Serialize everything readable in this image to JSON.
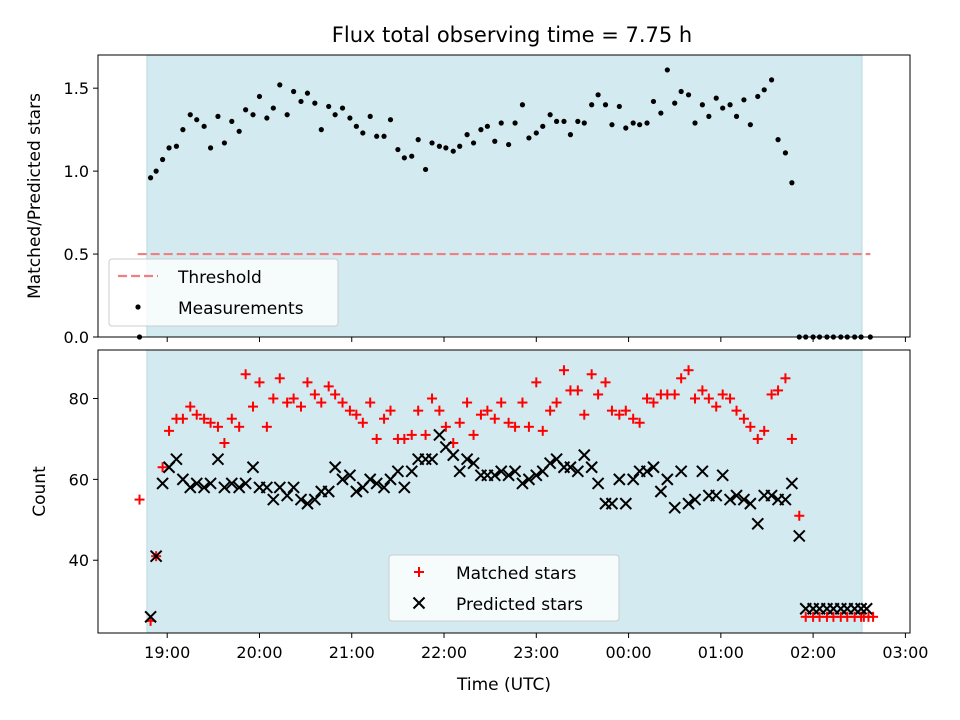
{
  "chart_data": [
    {
      "type": "scatter",
      "title": "Flux total observing time = 7.75 h",
      "ylabel": "Matched/Predicted stars",
      "xlabel": "",
      "x_unit": "hours UTC since 18:00 (values >24 are next day)",
      "xlim": [
        18.25,
        27.05
      ],
      "ylim": [
        0,
        1.7
      ],
      "yticks": [
        0.0,
        0.5,
        1.0,
        1.5
      ],
      "ytick_labels": [
        "0.0",
        "0.5",
        "1.0",
        "1.5"
      ],
      "shaded_span": {
        "x0": 18.78,
        "x1": 26.53,
        "color": "#d3eaf0"
      },
      "threshold": {
        "name": "Threshold",
        "value": 0.5,
        "x0": 18.68,
        "x1": 26.62,
        "color": "#f08080"
      },
      "legend": {
        "location": "lower-left",
        "entries": [
          "Threshold",
          "Measurements"
        ]
      },
      "series": [
        {
          "name": "Measurements",
          "color": "#000000",
          "marker": "dot",
          "x": [
            18.7,
            18.82,
            18.88,
            18.95,
            19.02,
            19.1,
            19.17,
            19.25,
            19.32,
            19.4,
            19.47,
            19.55,
            19.62,
            19.7,
            19.78,
            19.85,
            19.93,
            20.0,
            20.08,
            20.15,
            20.22,
            20.3,
            20.37,
            20.45,
            20.52,
            20.6,
            20.67,
            20.75,
            20.82,
            20.9,
            20.98,
            21.05,
            21.12,
            21.2,
            21.27,
            21.35,
            21.42,
            21.5,
            21.57,
            21.65,
            21.72,
            21.8,
            21.87,
            21.95,
            22.02,
            22.1,
            22.17,
            22.25,
            22.32,
            22.4,
            22.47,
            22.55,
            22.62,
            22.7,
            22.77,
            22.85,
            22.92,
            23.0,
            23.07,
            23.15,
            23.22,
            23.3,
            23.37,
            23.45,
            23.52,
            23.6,
            23.67,
            23.75,
            23.82,
            23.9,
            23.97,
            24.05,
            24.12,
            24.2,
            24.27,
            24.35,
            24.42,
            24.5,
            24.57,
            24.65,
            24.72,
            24.8,
            24.87,
            24.95,
            25.02,
            25.1,
            25.17,
            25.25,
            25.32,
            25.4,
            25.47,
            25.55,
            25.62,
            25.7,
            25.77,
            25.85,
            25.92,
            26.0,
            26.07,
            26.15,
            26.22,
            26.3,
            26.37,
            26.45,
            26.52,
            26.62
          ],
          "y": [
            0.0,
            0.96,
            1.0,
            1.07,
            1.14,
            1.15,
            1.25,
            1.34,
            1.31,
            1.27,
            1.14,
            1.33,
            1.17,
            1.3,
            1.24,
            1.37,
            1.34,
            1.45,
            1.32,
            1.38,
            1.52,
            1.34,
            1.48,
            1.42,
            1.47,
            1.41,
            1.25,
            1.39,
            1.34,
            1.38,
            1.32,
            1.27,
            1.23,
            1.33,
            1.21,
            1.21,
            1.31,
            1.13,
            1.08,
            1.09,
            1.19,
            1.01,
            1.17,
            1.15,
            1.14,
            1.12,
            1.15,
            1.22,
            1.17,
            1.25,
            1.27,
            1.18,
            1.29,
            1.16,
            1.29,
            1.4,
            1.2,
            1.23,
            1.27,
            1.34,
            1.3,
            1.3,
            1.22,
            1.3,
            1.29,
            1.4,
            1.46,
            1.4,
            1.28,
            1.39,
            1.26,
            1.29,
            1.28,
            1.29,
            1.42,
            1.35,
            1.61,
            1.41,
            1.48,
            1.46,
            1.29,
            1.4,
            1.33,
            1.44,
            1.38,
            1.4,
            1.33,
            1.43,
            1.28,
            1.45,
            1.49,
            1.55,
            1.19,
            1.11,
            0.93,
            0.0,
            0.0,
            0.0,
            0.0,
            0.0,
            0.0,
            0.0,
            0.0,
            0.0,
            0.0,
            0.0
          ]
        }
      ]
    },
    {
      "type": "scatter",
      "title": "",
      "ylabel": "Count",
      "xlabel": "Time (UTC)",
      "xlim": [
        18.25,
        27.05
      ],
      "ylim": [
        22,
        92
      ],
      "yticks": [
        40,
        60,
        80
      ],
      "ytick_labels": [
        "40",
        "60",
        "80"
      ],
      "xticks": [
        19,
        20,
        21,
        22,
        23,
        24,
        25,
        26,
        27
      ],
      "xtick_labels": [
        "19:00",
        "20:00",
        "21:00",
        "22:00",
        "23:00",
        "00:00",
        "01:00",
        "02:00",
        "03:00"
      ],
      "shaded_span": {
        "x0": 18.78,
        "x1": 26.53,
        "color": "#d3eaf0"
      },
      "legend": {
        "location": "lower-center",
        "entries": [
          "Matched stars",
          "Predicted stars"
        ]
      },
      "series": [
        {
          "name": "Matched stars",
          "color": "#ff0000",
          "marker": "plus",
          "x": [
            18.7,
            18.82,
            18.88,
            18.95,
            19.02,
            19.1,
            19.17,
            19.25,
            19.32,
            19.4,
            19.47,
            19.55,
            19.62,
            19.7,
            19.78,
            19.85,
            19.93,
            20.0,
            20.08,
            20.15,
            20.22,
            20.3,
            20.37,
            20.45,
            20.52,
            20.6,
            20.67,
            20.75,
            20.82,
            20.9,
            20.98,
            21.05,
            21.12,
            21.2,
            21.27,
            21.35,
            21.42,
            21.5,
            21.57,
            21.65,
            21.72,
            21.8,
            21.87,
            21.95,
            22.02,
            22.1,
            22.17,
            22.25,
            22.32,
            22.4,
            22.47,
            22.55,
            22.62,
            22.7,
            22.77,
            22.85,
            22.92,
            23.0,
            23.07,
            23.15,
            23.22,
            23.3,
            23.37,
            23.45,
            23.52,
            23.6,
            23.67,
            23.75,
            23.82,
            23.9,
            23.97,
            24.05,
            24.12,
            24.2,
            24.27,
            24.35,
            24.42,
            24.5,
            24.57,
            24.65,
            24.72,
            24.8,
            24.87,
            24.95,
            25.02,
            25.1,
            25.17,
            25.25,
            25.32,
            25.4,
            25.47,
            25.55,
            25.62,
            25.7,
            25.77,
            25.85,
            25.92,
            26.0,
            26.07,
            26.15,
            26.22,
            26.3,
            26.37,
            26.45,
            26.52,
            26.55,
            26.6,
            26.65
          ],
          "y": [
            55,
            25,
            41,
            63,
            72,
            75,
            75,
            78,
            76,
            75,
            74,
            73,
            69,
            75,
            73,
            86,
            78,
            84,
            73,
            80,
            85,
            79,
            80,
            78,
            84,
            81,
            79,
            83,
            81,
            79,
            77,
            76,
            74,
            79,
            70,
            75,
            77,
            70,
            70,
            71,
            77,
            71,
            80,
            77,
            73,
            69,
            74,
            79,
            71,
            76,
            77,
            75,
            79,
            74,
            73,
            79,
            73,
            84,
            72,
            77,
            79,
            87,
            82,
            82,
            76,
            86,
            81,
            84,
            77,
            76,
            77,
            75,
            74,
            80,
            79,
            81,
            81,
            81,
            85,
            87,
            80,
            82,
            80,
            78,
            81,
            80,
            77,
            75,
            73,
            70,
            72,
            81,
            82,
            85,
            70,
            51,
            26,
            26,
            26,
            26,
            26,
            26,
            26,
            26,
            26,
            26,
            26,
            26
          ]
        },
        {
          "name": "Predicted stars",
          "color": "#000000",
          "marker": "x",
          "x": [
            18.82,
            18.88,
            18.95,
            19.02,
            19.1,
            19.17,
            19.25,
            19.32,
            19.4,
            19.47,
            19.55,
            19.62,
            19.7,
            19.78,
            19.85,
            19.93,
            20.0,
            20.08,
            20.15,
            20.22,
            20.3,
            20.37,
            20.45,
            20.52,
            20.6,
            20.67,
            20.75,
            20.82,
            20.9,
            20.98,
            21.05,
            21.12,
            21.2,
            21.27,
            21.35,
            21.42,
            21.5,
            21.57,
            21.65,
            21.72,
            21.8,
            21.87,
            21.95,
            22.02,
            22.1,
            22.17,
            22.25,
            22.32,
            22.4,
            22.47,
            22.55,
            22.62,
            22.7,
            22.77,
            22.85,
            22.92,
            23.0,
            23.07,
            23.15,
            23.22,
            23.3,
            23.37,
            23.45,
            23.52,
            23.6,
            23.67,
            23.75,
            23.82,
            23.9,
            23.97,
            24.05,
            24.12,
            24.2,
            24.27,
            24.35,
            24.42,
            24.5,
            24.57,
            24.65,
            24.72,
            24.8,
            24.87,
            24.95,
            25.02,
            25.1,
            25.17,
            25.25,
            25.32,
            25.4,
            25.47,
            25.55,
            25.62,
            25.7,
            25.77,
            25.85,
            25.92,
            26.0,
            26.07,
            26.15,
            26.22,
            26.3,
            26.37,
            26.45,
            26.52,
            26.58
          ],
          "y": [
            26,
            41,
            59,
            63,
            65,
            60,
            58,
            59,
            58,
            59,
            65,
            58,
            59,
            58,
            59,
            63,
            58,
            58,
            55,
            58,
            56,
            58,
            55,
            54,
            55,
            57,
            57,
            63,
            60,
            61,
            57,
            58,
            60,
            59,
            58,
            60,
            62,
            58,
            62,
            65,
            65,
            65,
            71,
            68,
            66,
            62,
            65,
            64,
            61,
            61,
            61,
            62,
            61,
            62,
            59,
            60,
            61,
            62,
            64,
            65,
            63,
            63,
            62,
            66,
            63,
            59,
            54,
            54,
            60,
            54,
            60,
            62,
            62,
            63,
            57,
            60,
            53,
            62,
            54,
            55,
            62,
            56,
            56,
            61,
            55,
            56,
            55,
            54,
            49,
            56,
            56,
            55,
            55,
            59,
            46,
            28,
            28,
            28,
            28,
            28,
            28,
            28,
            28,
            28,
            28
          ]
        }
      ]
    }
  ]
}
